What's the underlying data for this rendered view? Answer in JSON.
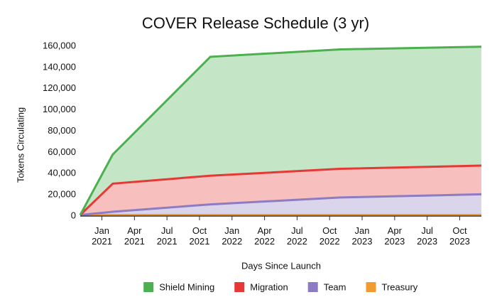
{
  "chart_data": {
    "type": "stacked-area",
    "title": "COVER Release Schedule (3 yr)",
    "x_label": "Days Since Launch",
    "y_label": "Tokens Circulating",
    "x": [
      "2020-11",
      "2021-02",
      "2021-11",
      "2022-11",
      "2023-12"
    ],
    "xlim": [
      "2020-11",
      "2023-12"
    ],
    "xticks": [
      {
        "value": "2021-01",
        "label": "Jan 2021"
      },
      {
        "value": "2021-04",
        "label": "Apr 2021"
      },
      {
        "value": "2021-07",
        "label": "Jul 2021"
      },
      {
        "value": "2021-10",
        "label": "Oct 2021"
      },
      {
        "value": "2022-01",
        "label": "Jan 2022"
      },
      {
        "value": "2022-04",
        "label": "Apr 2022"
      },
      {
        "value": "2022-07",
        "label": "Jul 2022"
      },
      {
        "value": "2022-10",
        "label": "Oct 2022"
      },
      {
        "value": "2023-01",
        "label": "Jan 2023"
      },
      {
        "value": "2023-04",
        "label": "Apr 2023"
      },
      {
        "value": "2023-07",
        "label": "Jul 2023"
      },
      {
        "value": "2023-10",
        "label": "Oct 2023"
      }
    ],
    "ylim": [
      0,
      160000
    ],
    "yticks": [
      0,
      {
        "value": 20000,
        "label": "20,000"
      },
      {
        "value": 40000,
        "label": "40,000"
      },
      {
        "value": 60000,
        "label": "60,000"
      },
      {
        "value": 80000,
        "label": "80,000"
      },
      {
        "value": 100000,
        "label": "100,000"
      },
      {
        "value": 120000,
        "label": "120,000"
      },
      {
        "value": 140000,
        "label": "140,000"
      },
      {
        "value": 160000,
        "label": "160,000"
      }
    ],
    "grid": false,
    "legend": "bottom",
    "series": [
      {
        "name": "Shield Mining",
        "color": "#4caf50",
        "values": [
          0,
          27500,
          112000,
          112500,
          112000
        ]
      },
      {
        "name": "Migration",
        "color": "#e53935",
        "values": [
          0,
          26500,
          27000,
          27000,
          27000
        ]
      },
      {
        "name": "Team",
        "color": "#8e7cc3",
        "values": [
          0,
          3000,
          10000,
          16500,
          19500
        ]
      },
      {
        "name": "Treasury",
        "color": "#f29b30",
        "values": [
          1000,
          1000,
          1000,
          1000,
          1000
        ]
      }
    ]
  }
}
